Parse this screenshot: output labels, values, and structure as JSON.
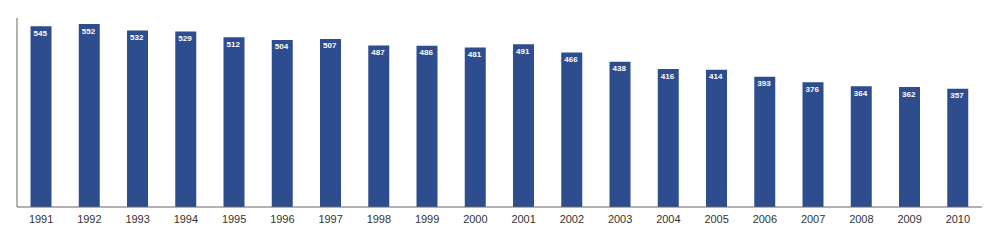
{
  "chart_data": {
    "type": "bar",
    "categories": [
      "1991",
      "1992",
      "1993",
      "1994",
      "1995",
      "1996",
      "1997",
      "1998",
      "1999",
      "2000",
      "2001",
      "2002",
      "2003",
      "2004",
      "2005",
      "2006",
      "2007",
      "2008",
      "2009",
      "2010"
    ],
    "values": [
      545,
      552,
      532,
      529,
      512,
      504,
      507,
      487,
      486,
      481,
      491,
      466,
      438,
      416,
      414,
      393,
      376,
      364,
      362,
      357
    ],
    "color": "#2e4d8e",
    "ylim": [
      0,
      570
    ],
    "grid": false,
    "data_labels": true,
    "tick_labels": "x"
  }
}
